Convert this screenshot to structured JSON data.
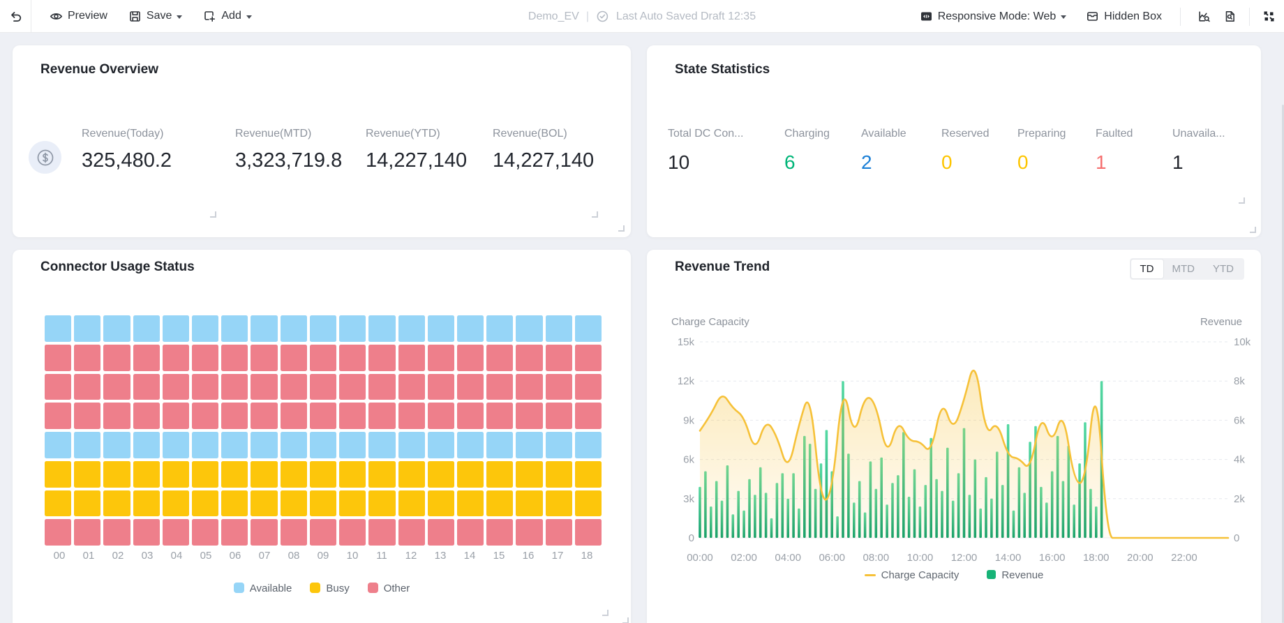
{
  "toolbar": {
    "preview_label": "Preview",
    "save_label": "Save",
    "add_label": "Add",
    "doc_title": "Demo_EV",
    "separator": "|",
    "autosave_text": "Last Auto Saved Draft 12:35",
    "responsive_label": "Responsive Mode: Web",
    "hidden_box_label": "Hidden Box"
  },
  "panels": {
    "revenue_overview": {
      "title": "Revenue Overview",
      "metrics": [
        {
          "label": "Revenue(Today)",
          "value": "325,480.2"
        },
        {
          "label": "Revenue(MTD)",
          "value": "3,323,719.8"
        },
        {
          "label": "Revenue(YTD)",
          "value": "14,227,140"
        },
        {
          "label": "Revenue(BOL)",
          "value": "14,227,140"
        }
      ]
    },
    "state_statistics": {
      "title": "State Statistics",
      "stats": [
        {
          "label": "Total DC Con...",
          "value": "10",
          "color": "#23262d"
        },
        {
          "label": "Charging",
          "value": "6",
          "color": "#00b578"
        },
        {
          "label": "Available",
          "value": "2",
          "color": "#1a7fd6"
        },
        {
          "label": "Reserved",
          "value": "0",
          "color": "#fdc500"
        },
        {
          "label": "Preparing",
          "value": "0",
          "color": "#fdc500"
        },
        {
          "label": "Faulted",
          "value": "1",
          "color": "#f56e6e"
        },
        {
          "label": "Unavaila...",
          "value": "1",
          "color": "#23262d"
        }
      ]
    },
    "connector_usage": {
      "title": "Connector Usage Status"
    },
    "revenue_trend": {
      "title": "Revenue Trend",
      "tabs": [
        "TD",
        "MTD",
        "YTD"
      ],
      "active_tab": "TD"
    }
  },
  "chart_data": [
    {
      "type": "heatmap",
      "title": "Connector Usage Status",
      "categories": [
        "00",
        "01",
        "02",
        "03",
        "04",
        "05",
        "06",
        "07",
        "08",
        "09",
        "10",
        "11",
        "12",
        "13",
        "14",
        "15",
        "16",
        "17",
        "18"
      ],
      "rows": [
        "available",
        "other",
        "other",
        "other",
        "available",
        "busy",
        "busy",
        "other"
      ],
      "row_note": "8 connector rows; every cell in a row shares the row status across hours 00-18",
      "legend": [
        {
          "label": "Available",
          "color": "#96d5f7",
          "key": "available"
        },
        {
          "label": "Busy",
          "color": "#fdc60b",
          "key": "busy"
        },
        {
          "label": "Other",
          "color": "#ee7f8b",
          "key": "other"
        }
      ],
      "legend_position": "bottom"
    },
    {
      "type": "line+bar",
      "title": "Revenue Trend",
      "x_ticks": [
        "00:00",
        "02:00",
        "04:00",
        "06:00",
        "08:00",
        "10:00",
        "12:00",
        "14:00",
        "16:00",
        "18:00",
        "20:00",
        "22:00"
      ],
      "x_range_hours": [
        0,
        24
      ],
      "left_axis": {
        "label": "Charge Capacity",
        "ticks": [
          "0",
          "3k",
          "6k",
          "9k",
          "12k",
          "15k"
        ],
        "max": 15000
      },
      "right_axis": {
        "label": "Revenue",
        "ticks": [
          "0",
          "2k",
          "4k",
          "6k",
          "8k",
          "10k"
        ],
        "max": 10000
      },
      "grid": "dashed-horizontal",
      "legend_position": "bottom",
      "series": [
        {
          "name": "Charge Capacity",
          "type": "line",
          "axis": "left",
          "color": "#f6c138",
          "area_fill": "#f6c138",
          "x_start": 0,
          "x_step_hours": 0.5,
          "values": [
            8200,
            9400,
            11200,
            9900,
            9300,
            6500,
            9100,
            7800,
            5000,
            8700,
            11400,
            2600,
            3300,
            12100,
            7500,
            11000,
            10300,
            6100,
            9100,
            7400,
            7400,
            6400,
            10700,
            8100,
            10500,
            13900,
            7700,
            9000,
            6200,
            6100,
            5100,
            9600,
            7100,
            9900,
            4300,
            4100,
            12600,
            0,
            0,
            0,
            0,
            0,
            0,
            0,
            0,
            0,
            0,
            0,
            0
          ]
        },
        {
          "name": "Revenue",
          "type": "bar",
          "axis": "right",
          "color": "#17b377",
          "x_start": 0,
          "x_step_hours": 0.25,
          "values": [
            2600,
            3400,
            1600,
            2900,
            1900,
            3700,
            1200,
            2400,
            1400,
            3000,
            2200,
            3600,
            2300,
            1000,
            2800,
            3300,
            2000,
            3300,
            1500,
            5200,
            4800,
            2500,
            3800,
            5500,
            3400,
            1100,
            8000,
            4300,
            1800,
            2900,
            1300,
            3900,
            2500,
            4100,
            1700,
            2800,
            3200,
            5400,
            2100,
            3500,
            1600,
            2700,
            5100,
            3000,
            2400,
            4600,
            1900,
            3300,
            5600,
            2200,
            4000,
            1500,
            3100,
            2000,
            4400,
            2700,
            5800,
            1400,
            3600,
            2300,
            4900,
            5700,
            2600,
            1800,
            3400,
            5200,
            2900,
            4700,
            1700,
            3800,
            5900,
            2500,
            1600,
            8000
          ]
        }
      ]
    }
  ]
}
